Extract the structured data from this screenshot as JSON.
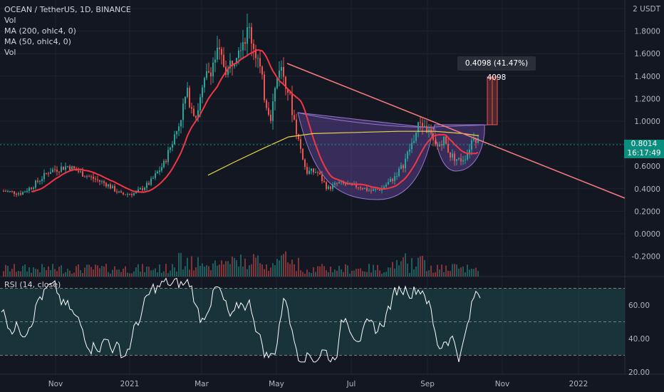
{
  "legend": {
    "symbol": "OCEAN / TetherUS, 1D, BINANCE",
    "lines": [
      "Vol",
      "MA (200, ohlc4, 0)",
      "MA (50, ohlc4, 0)",
      "Vol"
    ]
  },
  "rsi_label": "RSI (14, close)",
  "measure_label": "0.4098 (41.47%) 4098",
  "current_price": {
    "value": "0.8014",
    "countdown": "16:17:49"
  },
  "price_axis": [
    "2 USDT",
    "1.8000",
    "1.6000",
    "1.4000",
    "1.2000",
    "1.0000",
    "0.8000",
    "0.6000",
    "0.4000",
    "0.2000",
    "0.0000",
    "-0.2000"
  ],
  "rsi_axis": [
    "60.00",
    "40.00",
    "20.00"
  ],
  "time_axis": [
    "Nov",
    "2021",
    "Mar",
    "May",
    "Jul",
    "Sep",
    "Nov",
    "2022"
  ],
  "colors": {
    "background": "#131722",
    "up": "#26a69a",
    "down": "#ef5350",
    "ma50": "#f23645",
    "ma200": "#e7d44a",
    "trendline": "#f77c80",
    "cup_fill": "#7e57c2",
    "rsi_line": "#ffffff",
    "rsi_band": "#1e4b4f",
    "price_tag": "#0a8f7f"
  }
}
